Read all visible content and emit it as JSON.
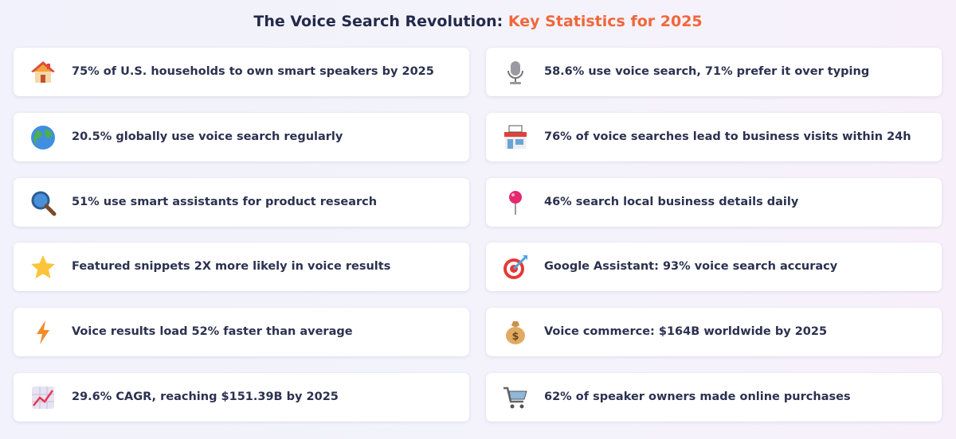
{
  "header": {
    "title": "The Voice Search Revolution:",
    "title_accent": "Key Statistics for 2025"
  },
  "stats": [
    "75% of U.S. households to own smart speakers by 2025",
    "58.6% use voice search, 71% prefer it over typing",
    "20.5% globally use voice search regularly",
    "76% of voice searches lead to business visits within 24h",
    "51% use smart assistants for product research",
    "46% search local business details daily",
    "Featured snippets 2X more likely in voice results",
    "Google Assistant: 93% voice search accuracy",
    "Voice results load 52% faster than average",
    "Voice commerce: $164B worldwide by 2025",
    "29.6% CAGR, reaching $151.39B by 2025",
    "62% of speaker owners made online purchases"
  ]
}
